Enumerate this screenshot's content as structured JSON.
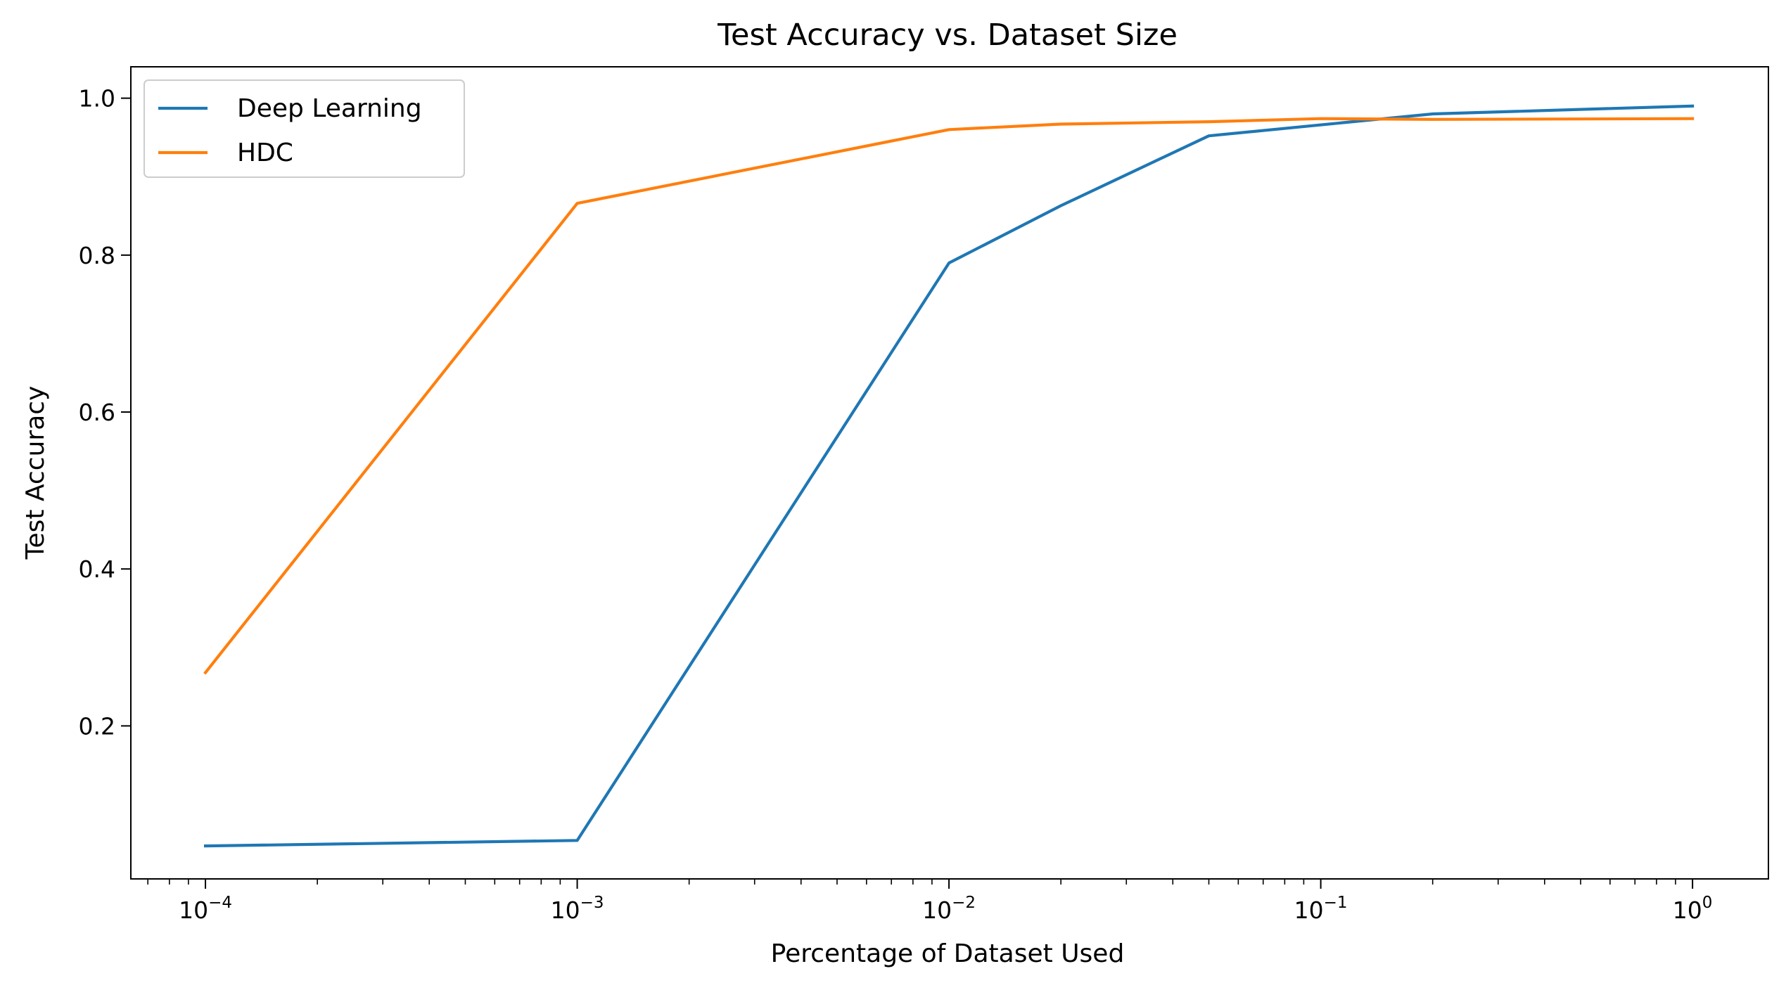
{
  "chart_data": {
    "type": "line",
    "title": "Test Accuracy vs. Dataset Size",
    "xlabel": "Percentage of Dataset Used",
    "ylabel": "Test Accuracy",
    "xscale": "log",
    "xlim": [
      6.3e-05,
      1.6
    ],
    "ylim": [
      0.005,
      1.04
    ],
    "x_ticks": [
      {
        "value": 0.0001,
        "base": "10",
        "exp": "−4"
      },
      {
        "value": 0.001,
        "base": "10",
        "exp": "−3"
      },
      {
        "value": 0.01,
        "base": "10",
        "exp": "−2"
      },
      {
        "value": 0.1,
        "base": "10",
        "exp": "−1"
      },
      {
        "value": 1,
        "base": "10",
        "exp": "0"
      }
    ],
    "y_ticks": [
      {
        "value": 0.2,
        "label": "0.2"
      },
      {
        "value": 0.4,
        "label": "0.4"
      },
      {
        "value": 0.6,
        "label": "0.6"
      },
      {
        "value": 0.8,
        "label": "0.8"
      },
      {
        "value": 1.0,
        "label": "1.0"
      }
    ],
    "grid": false,
    "legend_position": "top-left",
    "series": [
      {
        "name": "Deep Learning",
        "color": "#1f77b4",
        "x": [
          0.0001,
          0.001,
          0.01,
          0.02,
          0.05,
          0.2,
          1
        ],
        "y": [
          0.047,
          0.054,
          0.79,
          0.863,
          0.952,
          0.98,
          0.99
        ]
      },
      {
        "name": "HDC",
        "color": "#ff7f0e",
        "x": [
          0.0001,
          0.001,
          0.01,
          0.02,
          0.05,
          0.1,
          0.2,
          1
        ],
        "y": [
          0.268,
          0.866,
          0.96,
          0.967,
          0.97,
          0.974,
          0.973,
          0.974
        ]
      }
    ]
  }
}
